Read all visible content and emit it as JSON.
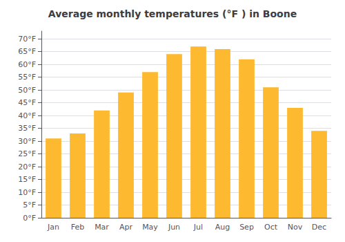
{
  "chart_data": {
    "type": "bar",
    "title": "Average monthly temperatures (°F ) in Boone",
    "categories": [
      "Jan",
      "Feb",
      "Mar",
      "Apr",
      "May",
      "Jun",
      "Jul",
      "Aug",
      "Sep",
      "Oct",
      "Nov",
      "Dec"
    ],
    "values": [
      31,
      33,
      42,
      49,
      57,
      64,
      67,
      66,
      62,
      51,
      43,
      34
    ],
    "color": "#FDB930",
    "ylim": [
      0,
      73
    ],
    "yticks": [
      {
        "value": 0,
        "label": "0°F"
      },
      {
        "value": 5,
        "label": "5°F"
      },
      {
        "value": 10,
        "label": "10°F"
      },
      {
        "value": 15,
        "label": "15°F"
      },
      {
        "value": 20,
        "label": "20°F"
      },
      {
        "value": 25,
        "label": "25°F"
      },
      {
        "value": 30,
        "label": "30°F"
      },
      {
        "value": 35,
        "label": "35°F"
      },
      {
        "value": 40,
        "label": "40°F"
      },
      {
        "value": 45,
        "label": "45°F"
      },
      {
        "value": 50,
        "label": "50°F"
      },
      {
        "value": 55,
        "label": "55°F"
      },
      {
        "value": 60,
        "label": "60°F"
      },
      {
        "value": 65,
        "label": "65°F"
      },
      {
        "value": 70,
        "label": "70°F"
      }
    ],
    "grid": true
  }
}
